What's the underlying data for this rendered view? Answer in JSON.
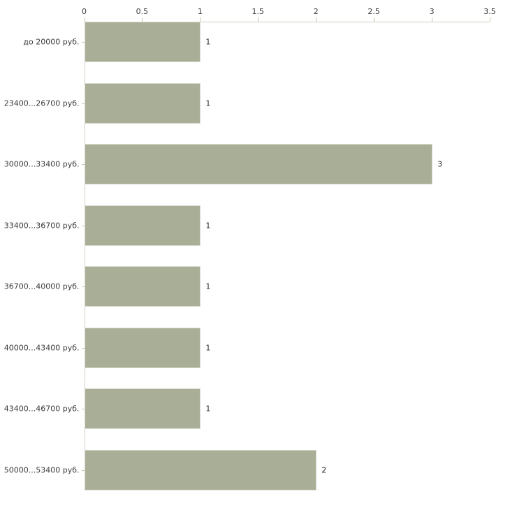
{
  "chart_data": {
    "type": "bar",
    "orientation": "horizontal",
    "title": "",
    "xlabel": "",
    "ylabel": "",
    "categories": [
      "до 20000 руб.",
      "23400...26700 руб.",
      "30000...33400 руб.",
      "33400...36700 руб.",
      "36700...40000 руб.",
      "40000...43400 руб.",
      "43400...46700 руб.",
      "50000...53400 руб."
    ],
    "values": [
      1,
      1,
      3,
      1,
      1,
      1,
      1,
      2
    ],
    "value_labels": [
      "1",
      "1",
      "3",
      "1",
      "1",
      "1",
      "1",
      "2"
    ],
    "xlim": [
      0,
      3.5
    ],
    "x_ticks": [
      0,
      0.5,
      1,
      1.5,
      2,
      2.5,
      3,
      3.5
    ],
    "x_tick_labels": [
      "0",
      "0.5",
      "1",
      "1.5",
      "2",
      "2.5",
      "3",
      "3.5"
    ],
    "axis_position": "top",
    "grid": false,
    "legend": false,
    "colors": {
      "bar_fill": "#a9ae96",
      "bar_border": "#d6d9cc",
      "axis_line": "#ccd0c2",
      "tick_mark": "#c3c7ac",
      "text": "#3a3a3a",
      "background": "#ffffff"
    }
  }
}
